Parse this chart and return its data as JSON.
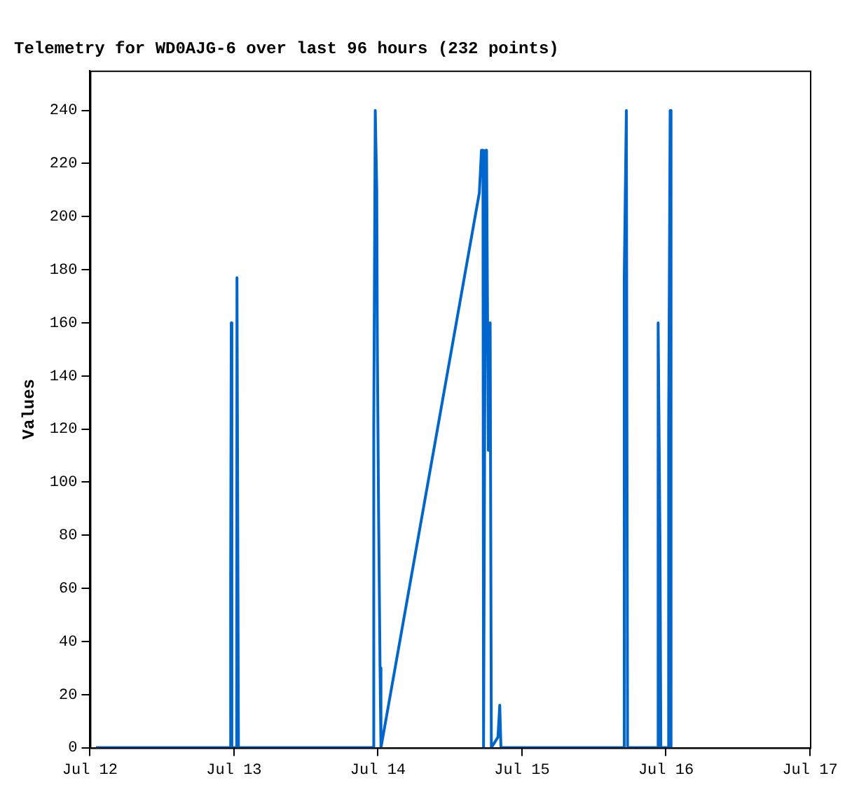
{
  "chart_data": {
    "type": "line",
    "title": "Telemetry for WD0AJG-6 over last 96 hours (232 points)",
    "ylabel": "Values",
    "x": [
      "--07-12T01:00",
      "--07-12T23:27",
      "--07-12T23:27",
      "--07-12T23:33",
      "--07-12T23:39",
      "--07-13T00:27",
      "--07-13T00:30",
      "--07-13T00:42",
      "--07-13T00:45",
      "--07-13T23:18",
      "--07-13T23:18",
      "--07-13T23:33",
      "--07-13T23:48",
      "--07-13T23:54",
      "--07-14T00:06",
      "--07-14T00:21",
      "--07-14T00:30",
      "--07-14T16:54",
      "--07-14T17:15",
      "--07-14T17:30",
      "--07-14T17:36",
      "--07-14T17:57",
      "--07-14T18:06",
      "--07-14T18:24",
      "--07-14T18:42",
      "--07-14T18:54",
      "--07-14T20:00",
      "--07-14T20:18",
      "--07-14T20:30",
      "--07-15T17:03",
      "--07-15T17:03",
      "--07-15T17:24",
      "--07-15T17:36",
      "--07-15T22:42",
      "--07-15T22:42",
      "--07-15T23:00",
      "--07-15T23:09",
      "--07-16T00:27",
      "--07-16T00:27",
      "--07-16T00:42",
      "--07-16T00:51"
    ],
    "series": [
      {
        "color": "#0066cc",
        "values": [
          0,
          0,
          64,
          160,
          0,
          0,
          177,
          177,
          0,
          0,
          120,
          240,
          210,
          150,
          90,
          30,
          0,
          209,
          225,
          225,
          0,
          225,
          225,
          112,
          160,
          0,
          4,
          16,
          0,
          0,
          177,
          240,
          0,
          0,
          160,
          80,
          0,
          0,
          120,
          240,
          0
        ]
      }
    ],
    "xlim": [
      "--07-12",
      "--07-17"
    ],
    "xticks": [
      {
        "value": "--07-12",
        "label": "Jul 12"
      },
      {
        "value": "--07-13",
        "label": "Jul 13"
      },
      {
        "value": "--07-14",
        "label": "Jul 14"
      },
      {
        "value": "--07-15",
        "label": "Jul 15"
      },
      {
        "value": "--07-16",
        "label": "Jul 16"
      },
      {
        "value": "--07-17",
        "label": "Jul 17"
      }
    ],
    "ylim": [
      0,
      255
    ],
    "yticks": [
      0,
      20,
      40,
      60,
      80,
      100,
      120,
      140,
      160,
      180,
      200,
      220,
      240
    ],
    "grid": false,
    "legend": false,
    "marker": "none",
    "line_style": "solid"
  }
}
